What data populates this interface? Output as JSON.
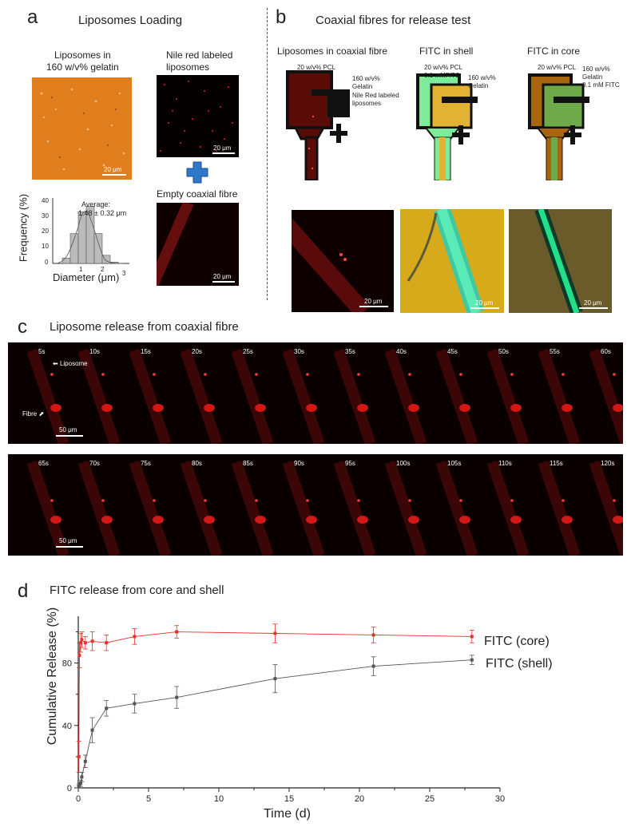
{
  "panel_a": {
    "label": "a",
    "title": "Liposomes Loading",
    "gelatin_caption": "Liposomes in\n160 w/v% gelatin",
    "nile_caption": "Nile red labeled\nliposomes",
    "empty_caption": "Empty coaxial fibre",
    "scale_20": "20 μm",
    "hist": {
      "ylabel": "Frequency (%)",
      "xlabel": "Diameter (μm)",
      "average_label": "Average:",
      "average_value": "1.48 ± 0.32 μm",
      "yticks": [
        "0",
        "10",
        "20",
        "30",
        "40"
      ],
      "xticks": [
        "1",
        "2",
        "3"
      ]
    }
  },
  "panel_b": {
    "label": "b",
    "title": "Coaxial fibres for release test",
    "col1_title": "Liposomes in coaxial fibre",
    "col2_title": "FITC in shell",
    "col3_title": "FITC in core",
    "s1_pcl": "20 w/v% PCL",
    "s1_gel": "160 w/v%\nGelatin",
    "s1_lip": "Nile Red labeled\nliposomes",
    "s2_pcl": "20 w/v% PCL\n0.1 mMFITC",
    "s2_gel": "160 w/v%\nGelatin",
    "s3_pcl": "20 w/v% PCL",
    "s3_gel": "160 w/v%\nGelatin\n0.1 mM FITC",
    "scale_20": "20 μm",
    "colors": {
      "dark_red": "#5a0d06",
      "green": "#7dec9a",
      "gold": "#e2b234",
      "brown": "#a8650f",
      "olive_green": "#6faa4a"
    }
  },
  "panel_c": {
    "label": "c",
    "title": "Liposome release from coaxial fibre",
    "row1_times": [
      "5s",
      "10s",
      "15s",
      "20s",
      "25s",
      "30s",
      "35s",
      "40s",
      "45s",
      "50s",
      "55s",
      "60s"
    ],
    "row2_times": [
      "65s",
      "70s",
      "75s",
      "80s",
      "85s",
      "90s",
      "95s",
      "100s",
      "105s",
      "110s",
      "115s",
      "120s"
    ],
    "liposome_label": "Liposome",
    "fibre_label": "Fibre",
    "scale_50": "50 μm"
  },
  "panel_d": {
    "label": "d",
    "title": "FITC release from core and shell",
    "chart_data": {
      "type": "line",
      "xlabel": "Time (d)",
      "ylabel": "Cumulative Release (%)",
      "xlim": [
        0,
        30
      ],
      "ylim": [
        0,
        110
      ],
      "xticks": [
        "0",
        "5",
        "10",
        "15",
        "20",
        "25",
        "30"
      ],
      "yticks": [
        "0",
        "40",
        "80"
      ],
      "series": [
        {
          "name": "FITC (core)",
          "color": "#e8302c",
          "x": [
            0.04,
            0.08,
            0.17,
            0.25,
            0.5,
            1,
            2,
            4,
            7,
            14,
            21,
            28
          ],
          "y": [
            20,
            85,
            93,
            95,
            93,
            94,
            93,
            97,
            100,
            99,
            98,
            97
          ],
          "err": [
            10,
            8,
            6,
            5,
            4,
            6,
            5,
            5,
            4,
            6,
            5,
            4
          ]
        },
        {
          "name": "FITC (shell)",
          "color": "#555555",
          "x": [
            0.04,
            0.08,
            0.17,
            0.25,
            0.5,
            1,
            2,
            4,
            7,
            14,
            21,
            28
          ],
          "y": [
            1,
            2,
            3,
            7,
            17,
            37,
            51,
            54,
            58,
            70,
            78,
            82
          ],
          "err": [
            1,
            1,
            2,
            3,
            4,
            8,
            5,
            6,
            7,
            9,
            6,
            3
          ]
        }
      ]
    }
  }
}
